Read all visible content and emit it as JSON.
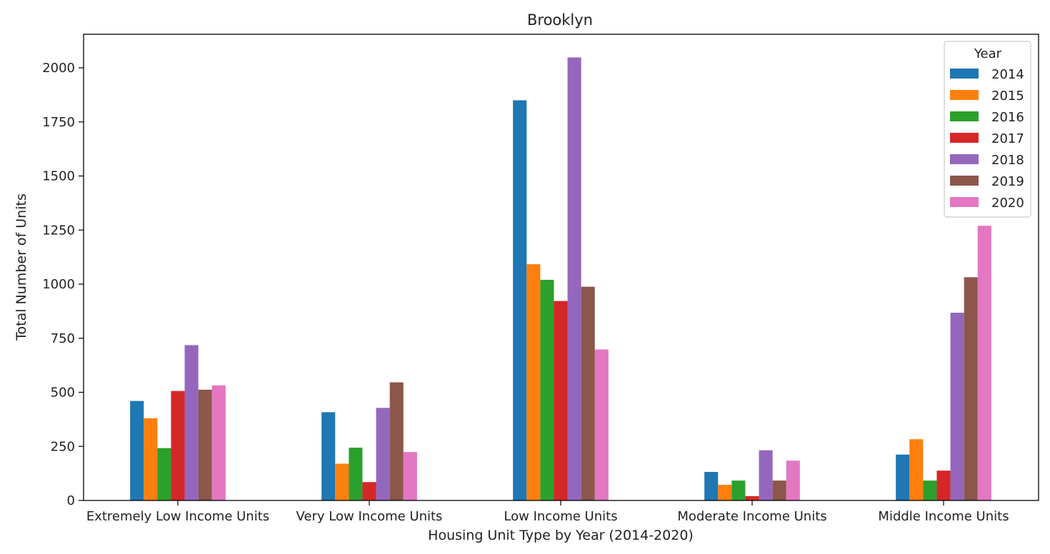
{
  "chart_data": {
    "type": "bar",
    "title": "Brooklyn",
    "xlabel": "Housing Unit Type by Year (2014-2020)",
    "ylabel": "Total Number of Units",
    "ylim": [
      0,
      2150
    ],
    "yticks": [
      0,
      250,
      500,
      750,
      1000,
      1250,
      1500,
      1750,
      2000
    ],
    "categories": [
      "Extremely Low Income Units",
      "Very Low Income Units",
      "Low Income Units",
      "Moderate Income Units",
      "Middle Income Units"
    ],
    "legend": {
      "title": "Year",
      "position": "top-right"
    },
    "grid": false,
    "series": [
      {
        "name": "2014",
        "color": "#1f77b4",
        "values": [
          460,
          408,
          1850,
          132,
          212
        ]
      },
      {
        "name": "2015",
        "color": "#ff7f0e",
        "values": [
          380,
          170,
          1092,
          72,
          283
        ]
      },
      {
        "name": "2016",
        "color": "#2ca02c",
        "values": [
          242,
          244,
          1020,
          92,
          92
        ]
      },
      {
        "name": "2017",
        "color": "#d62728",
        "values": [
          506,
          85,
          922,
          20,
          138
        ]
      },
      {
        "name": "2018",
        "color": "#9467bd",
        "values": [
          718,
          428,
          2048,
          232,
          868
        ]
      },
      {
        "name": "2019",
        "color": "#8c564b",
        "values": [
          512,
          546,
          988,
          92,
          1032
        ]
      },
      {
        "name": "2020",
        "color": "#e377c2",
        "values": [
          532,
          224,
          698,
          184,
          1270
        ]
      }
    ]
  }
}
